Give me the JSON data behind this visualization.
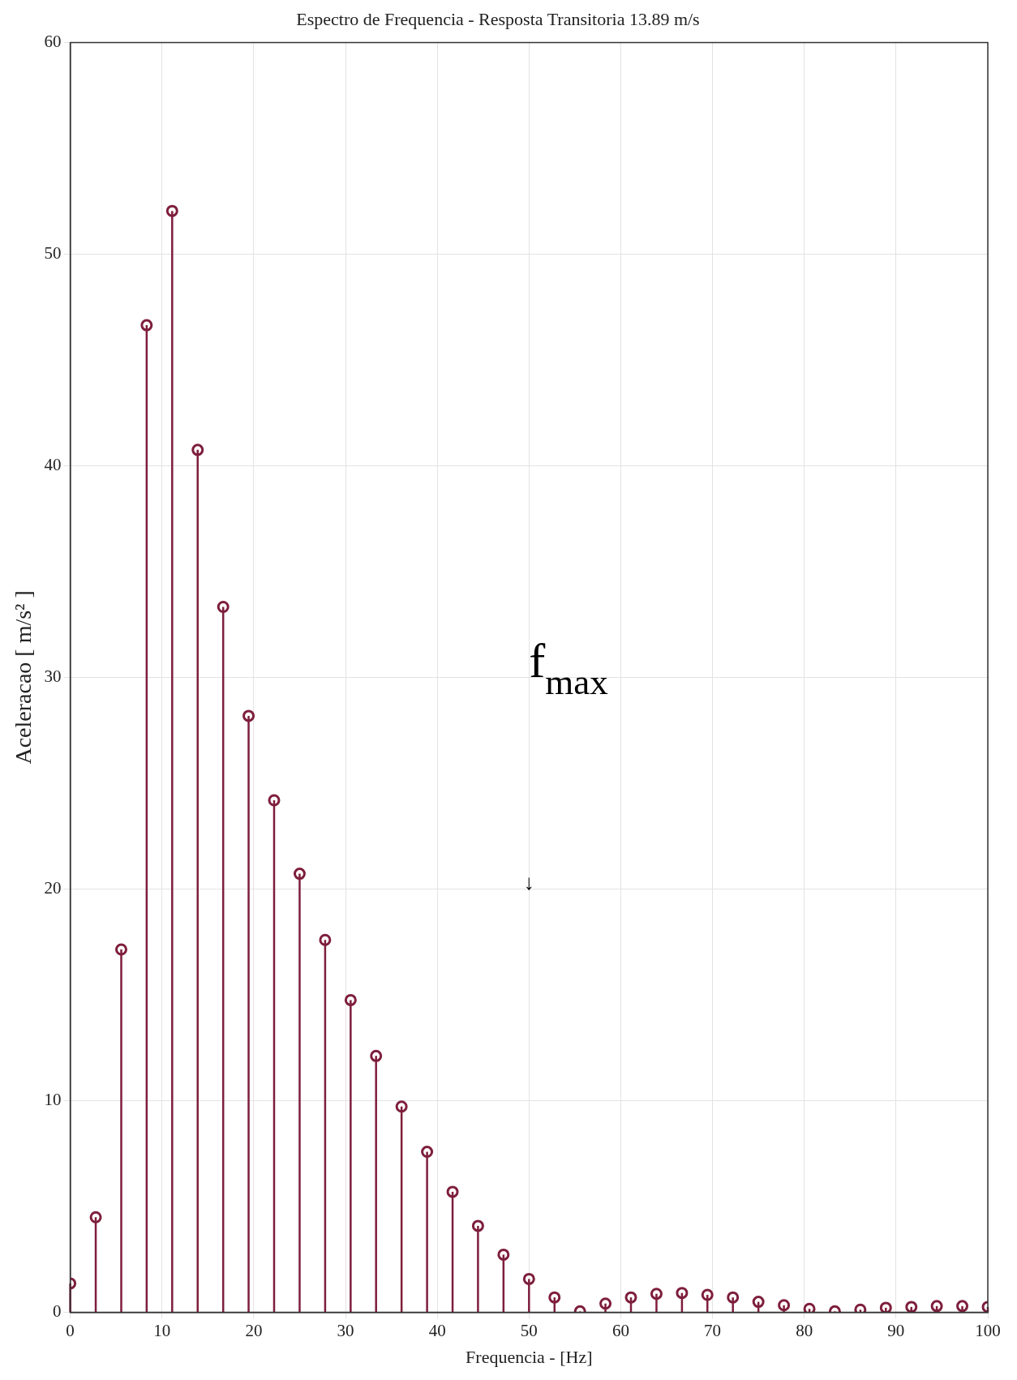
{
  "chart_data": {
    "type": "lollipop",
    "title": "Espectro de Frequencia - Resposta Transitoria 13.89 m/s",
    "xlabel": "Frequencia - [Hz]",
    "ylabel": "Aceleracao [ m/s² ]",
    "x": [
      0,
      2.78,
      5.56,
      8.33,
      11.11,
      13.89,
      16.67,
      19.44,
      22.22,
      25,
      27.78,
      30.56,
      33.33,
      36.11,
      38.89,
      41.67,
      44.44,
      47.22,
      50,
      52.78,
      55.56,
      58.33,
      61.11,
      63.89,
      66.67,
      69.44,
      72.22,
      75,
      77.78,
      80.56,
      83.33,
      86.11,
      88.89,
      91.67,
      94.44,
      97.22,
      100
    ],
    "values": [
      1.36,
      4.49,
      17.14,
      46.64,
      52.04,
      40.75,
      33.33,
      28.18,
      24.19,
      20.72,
      17.59,
      14.75,
      12.11,
      9.72,
      7.58,
      5.69,
      4.08,
      2.72,
      1.57,
      0.7,
      0.04,
      0.41,
      0.7,
      0.87,
      0.91,
      0.82,
      0.7,
      0.49,
      0.33,
      0.16,
      0.04,
      0.12,
      0.21,
      0.25,
      0.29,
      0.29,
      0.25
    ],
    "color": "#7e1e3c",
    "marker": "circle",
    "grid": true,
    "xlim": [
      0,
      100
    ],
    "xticks": [
      0,
      10,
      20,
      30,
      40,
      50,
      60,
      70,
      80,
      90,
      100
    ],
    "ylim": [
      0,
      60
    ],
    "yticks": [
      0,
      10,
      20,
      30,
      40,
      50,
      60
    ],
    "annotations": [
      "f$_{max}$",
      "↓"
    ]
  }
}
